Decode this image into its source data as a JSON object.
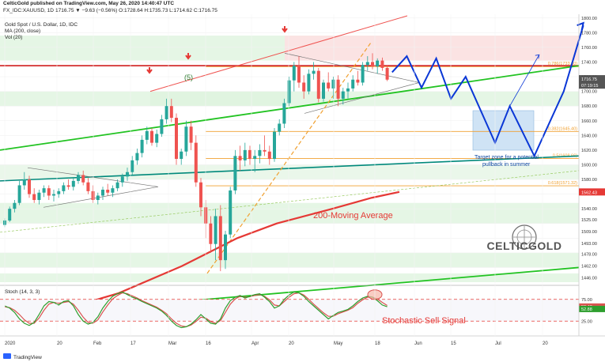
{
  "header": {
    "publisher_line": "CelticGold published on TradingView.com, May 26, 2020 14:40:47 UTC",
    "symbol_line": "FX_IDC:XAUUSD, 1D",
    "symbol_values": "1716.75 ▼ −9.63 (−0.56%) O:1728.64 H:1735.73 L:1714.62 C:1716.75",
    "title": "Gold Spot / U.S. Dollar, 1D, IDC",
    "ma_legend": "MA (200, close)",
    "vol_legend": "Vol (20)",
    "stoch_legend": "Stoch (14, 3, 3)"
  },
  "footer": {
    "brand": "TradingView"
  },
  "logo": {
    "text": "CELTICGOLD"
  },
  "colors": {
    "up": "#26a69a",
    "down": "#ef5350",
    "ma200": "#e53935",
    "green_trend": "#22c322",
    "teal_line": "#00897b",
    "target_box": "#cfe3f5",
    "forecast": "#0a37d6",
    "fib": "#f0a030",
    "stoch_k": "#2e9e2e",
    "stoch_d": "#d9534f"
  },
  "chart_data": {
    "type": "candlestick",
    "title": "Gold Spot / U.S. Dollar, 1D, IDC",
    "x_tick_labels": [
      "2020",
      "20",
      "Feb",
      "17",
      "Mar",
      "16",
      "Apr",
      "20",
      "May",
      "18",
      "Jun",
      "15",
      "Jul",
      "20"
    ],
    "y_tick_labels": [
      "1800.00",
      "1780.00",
      "1760.00",
      "1740.00",
      "1720.00",
      "1700.00",
      "1680.00",
      "1660.00",
      "1640.00",
      "1620.00",
      "1600.00",
      "1580.00",
      "1562.43",
      "1540.00",
      "1525.00",
      "1509.00",
      "1493.00",
      "1478.00",
      "1462.00",
      "1446.00"
    ],
    "ylim": [
      1440,
      1803
    ],
    "price_labels": {
      "last": "1716.75",
      "countdown": "07:19:15",
      "ma": "1562.43"
    },
    "candles_ohlc_approx": [
      [
        1518,
        1527,
        1515,
        1524
      ],
      [
        1524,
        1543,
        1522,
        1540
      ],
      [
        1540,
        1552,
        1535,
        1548
      ],
      [
        1548,
        1578,
        1545,
        1572
      ],
      [
        1572,
        1590,
        1566,
        1580
      ],
      [
        1580,
        1585,
        1555,
        1560
      ],
      [
        1560,
        1568,
        1548,
        1552
      ],
      [
        1552,
        1566,
        1546,
        1562
      ],
      [
        1562,
        1572,
        1556,
        1568
      ],
      [
        1568,
        1572,
        1552,
        1558
      ],
      [
        1558,
        1566,
        1550,
        1560
      ],
      [
        1560,
        1568,
        1555,
        1564
      ],
      [
        1564,
        1576,
        1560,
        1572
      ],
      [
        1572,
        1580,
        1566,
        1570
      ],
      [
        1570,
        1582,
        1565,
        1578
      ],
      [
        1578,
        1590,
        1574,
        1586
      ],
      [
        1586,
        1592,
        1572,
        1576
      ],
      [
        1576,
        1582,
        1560,
        1564
      ],
      [
        1564,
        1572,
        1548,
        1552
      ],
      [
        1552,
        1562,
        1546,
        1558
      ],
      [
        1558,
        1570,
        1552,
        1566
      ],
      [
        1566,
        1574,
        1558,
        1562
      ],
      [
        1562,
        1572,
        1556,
        1568
      ],
      [
        1568,
        1580,
        1564,
        1576
      ],
      [
        1576,
        1588,
        1570,
        1584
      ],
      [
        1584,
        1596,
        1578,
        1590
      ],
      [
        1590,
        1612,
        1586,
        1606
      ],
      [
        1606,
        1622,
        1600,
        1616
      ],
      [
        1616,
        1640,
        1610,
        1634
      ],
      [
        1634,
        1652,
        1628,
        1646
      ],
      [
        1646,
        1650,
        1626,
        1630
      ],
      [
        1630,
        1648,
        1624,
        1642
      ],
      [
        1642,
        1668,
        1638,
        1662
      ],
      [
        1662,
        1690,
        1656,
        1680
      ],
      [
        1680,
        1690,
        1658,
        1664
      ],
      [
        1664,
        1670,
        1600,
        1608
      ],
      [
        1608,
        1622,
        1600,
        1618
      ],
      [
        1618,
        1660,
        1612,
        1652
      ],
      [
        1652,
        1660,
        1620,
        1630
      ],
      [
        1630,
        1640,
        1570,
        1576
      ],
      [
        1576,
        1582,
        1530,
        1542
      ],
      [
        1542,
        1552,
        1500,
        1520
      ],
      [
        1520,
        1530,
        1480,
        1492
      ],
      [
        1492,
        1540,
        1470,
        1530
      ],
      [
        1530,
        1545,
        1455,
        1470
      ],
      [
        1470,
        1510,
        1458,
        1505
      ],
      [
        1505,
        1570,
        1500,
        1565
      ],
      [
        1565,
        1620,
        1560,
        1612
      ],
      [
        1612,
        1626,
        1592,
        1606
      ],
      [
        1606,
        1630,
        1598,
        1620
      ],
      [
        1620,
        1626,
        1600,
        1608
      ],
      [
        1608,
        1620,
        1590,
        1612
      ],
      [
        1612,
        1628,
        1602,
        1620
      ],
      [
        1620,
        1640,
        1612,
        1618
      ],
      [
        1618,
        1626,
        1600,
        1608
      ],
      [
        1608,
        1650,
        1604,
        1645
      ],
      [
        1645,
        1662,
        1640,
        1656
      ],
      [
        1656,
        1690,
        1650,
        1684
      ],
      [
        1684,
        1720,
        1680,
        1715
      ],
      [
        1715,
        1740,
        1700,
        1735
      ],
      [
        1735,
        1748,
        1705,
        1712
      ],
      [
        1712,
        1722,
        1690,
        1700
      ],
      [
        1700,
        1730,
        1696,
        1724
      ],
      [
        1724,
        1740,
        1716,
        1728
      ],
      [
        1728,
        1732,
        1685,
        1690
      ],
      [
        1690,
        1716,
        1686,
        1712
      ],
      [
        1712,
        1726,
        1700,
        1704
      ],
      [
        1704,
        1720,
        1690,
        1716
      ],
      [
        1716,
        1722,
        1680,
        1690
      ],
      [
        1690,
        1705,
        1682,
        1700
      ],
      [
        1700,
        1712,
        1690,
        1704
      ],
      [
        1704,
        1722,
        1700,
        1716
      ],
      [
        1716,
        1728,
        1708,
        1712
      ],
      [
        1712,
        1740,
        1708,
        1736
      ],
      [
        1736,
        1748,
        1728,
        1740
      ],
      [
        1740,
        1752,
        1730,
        1734
      ],
      [
        1734,
        1745,
        1724,
        1742
      ],
      [
        1742,
        1746,
        1728,
        1732
      ],
      [
        1732,
        1736,
        1714,
        1716
      ]
    ],
    "moving_average_200_label": "200-Moving Average",
    "fibonacci_labels": [
      "0.786(1733.80)",
      "0.382(1645.40)",
      "0.5(1608.66)",
      "0.618(1571.32)"
    ],
    "annotations": {
      "wave_label": "(5)",
      "target_zone": "Target zone for a potential pullback in summer",
      "stoch_signal": "Stochastic Sell Signal"
    },
    "forecast_path": [
      [
        79,
        1726
      ],
      [
        82,
        1748
      ],
      [
        85,
        1705
      ],
      [
        88,
        1745
      ],
      [
        91,
        1690
      ],
      [
        94,
        1720
      ],
      [
        100,
        1630
      ],
      [
        103,
        1680
      ],
      [
        108,
        1612
      ],
      [
        114,
        1700
      ],
      [
        118,
        1790
      ]
    ],
    "stochastic": {
      "k": [
        60,
        55,
        45,
        30,
        20,
        15,
        22,
        40,
        60,
        70,
        68,
        62,
        70,
        72,
        60,
        40,
        25,
        18,
        22,
        35,
        55,
        70,
        82,
        88,
        92,
        86,
        80,
        76,
        70,
        65,
        60,
        55,
        48,
        38,
        25,
        15,
        10,
        12,
        18,
        28,
        40,
        30,
        20,
        18,
        30,
        55,
        72,
        80,
        84,
        78,
        82,
        86,
        88,
        80,
        70,
        55,
        60,
        75,
        85,
        92,
        90,
        82,
        70,
        60,
        50,
        40,
        30,
        38,
        45,
        48,
        52,
        60,
        70,
        78,
        82,
        80,
        72,
        62,
        58
      ],
      "d": [
        58,
        56,
        50,
        40,
        28,
        20,
        20,
        32,
        50,
        64,
        68,
        66,
        68,
        70,
        64,
        50,
        34,
        22,
        20,
        28,
        46,
        62,
        76,
        84,
        90,
        88,
        83,
        78,
        72,
        67,
        62,
        57,
        50,
        42,
        30,
        20,
        14,
        12,
        16,
        24,
        34,
        32,
        24,
        20,
        26,
        45,
        64,
        76,
        82,
        80,
        81,
        84,
        86,
        82,
        74,
        62,
        60,
        70,
        80,
        88,
        90,
        85,
        75,
        64,
        54,
        44,
        36,
        36,
        42,
        46,
        50,
        56,
        66,
        74,
        80,
        80,
        76,
        68,
        61
      ],
      "ylim": [
        0,
        100
      ],
      "levels": [
        "75.00",
        "58.43",
        "52.88",
        "25.00"
      ]
    }
  }
}
